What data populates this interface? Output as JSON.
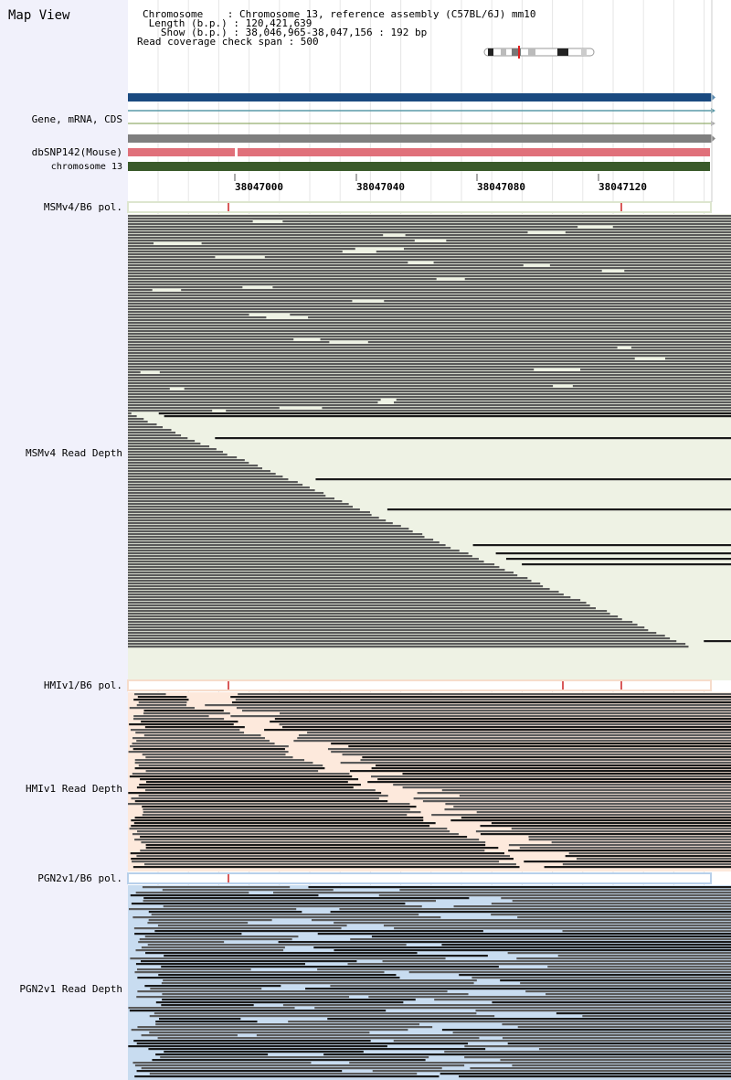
{
  "app": {
    "title": "Map View"
  },
  "info": {
    "chromosome": "Chromosome    : Chromosome 13, reference assembly (C57BL/6J) mm10",
    "length": " Length (b.p.) : 120,421,639",
    "show": "   Show (b.p.) : 38,046,965-38,047,156 : 192 bp",
    "coverage": "Read coverage check span : 500"
  },
  "tracks": {
    "gene": "Gene, mRNA, CDS",
    "snp": "dbSNP142(Mouse)",
    "chrom": "chromosome 13",
    "msm_pol": "MSMv4/B6 pol.",
    "msm_depth": "MSMv4 Read Depth",
    "hmi_pol": "HMIv1/B6 pol.",
    "hmi_depth": "HMIv1 Read Depth",
    "pgn_pol": "PGN2v1/B6 pol.",
    "pgn_depth": "PGN2v1 Read Depth"
  },
  "axis": {
    "ticks": [
      "38047000",
      "38047040",
      "38047080",
      "38047120"
    ]
  },
  "colors": {
    "gene_track": "#1a4a80",
    "snp_track": "#e0707a",
    "chrom_track": "#3a5a2a",
    "msm_bg": "#eef2e4",
    "hmi_bg": "#fde9dc",
    "pgn_bg": "#c8dcf0",
    "read": "#5a5a5a",
    "read_dark": "#1a1a1a",
    "snp_mark": "#cc2222"
  }
}
